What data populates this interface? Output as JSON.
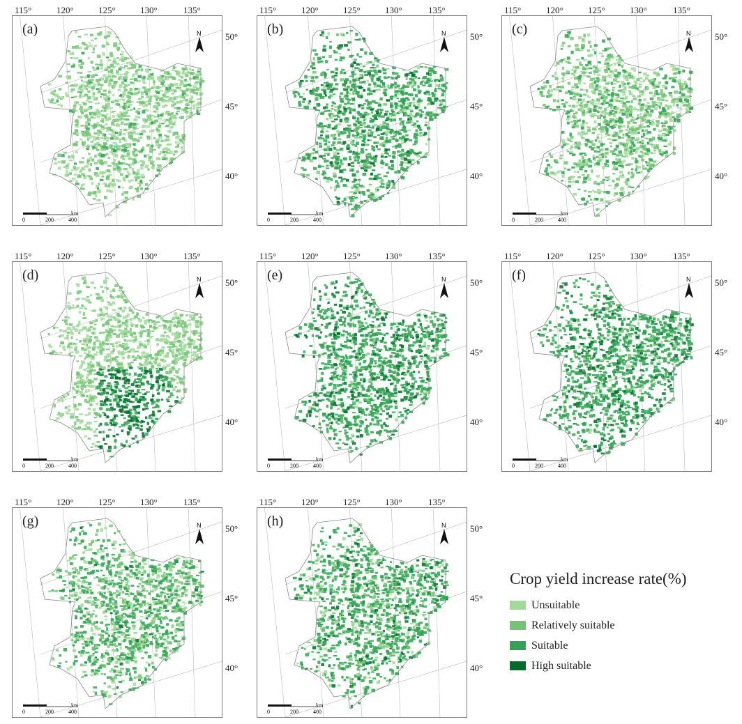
{
  "panels": [
    {
      "label": "(a)",
      "shade": [
        0.9,
        0.1,
        0.0
      ]
    },
    {
      "label": "(b)",
      "shade": [
        0.2,
        0.6,
        0.2
      ]
    },
    {
      "label": "(c)",
      "shade": [
        0.7,
        0.3,
        0.0
      ]
    },
    {
      "label": "(d)",
      "shade": [
        1.0,
        0.0,
        0.0
      ],
      "dark_southeast": true
    },
    {
      "label": "(e)",
      "shade": [
        0.1,
        0.5,
        0.4
      ]
    },
    {
      "label": "(f)",
      "shade": [
        0.1,
        0.5,
        0.4
      ]
    },
    {
      "label": "(g)",
      "shade": [
        0.5,
        0.45,
        0.05
      ]
    },
    {
      "label": "(h)",
      "shade": [
        0.3,
        0.5,
        0.2
      ]
    }
  ],
  "lon_labels": [
    "115°",
    "120°",
    "125°",
    "130°",
    "135°"
  ],
  "lat_labels": [
    "50°",
    "45°",
    "40°"
  ],
  "north_label": "N",
  "scale": {
    "unit": "km",
    "ticks": [
      "0",
      "200",
      "400"
    ]
  },
  "legend": {
    "title": "Crop yield increase rate(%)",
    "items": [
      {
        "label": "Unsuitable",
        "color": "#a1d99b"
      },
      {
        "label": "Relatively suitable",
        "color": "#74c476"
      },
      {
        "label": "Suitable",
        "color": "#31a354"
      },
      {
        "label": "High suitable",
        "color": "#006d2c"
      }
    ]
  }
}
